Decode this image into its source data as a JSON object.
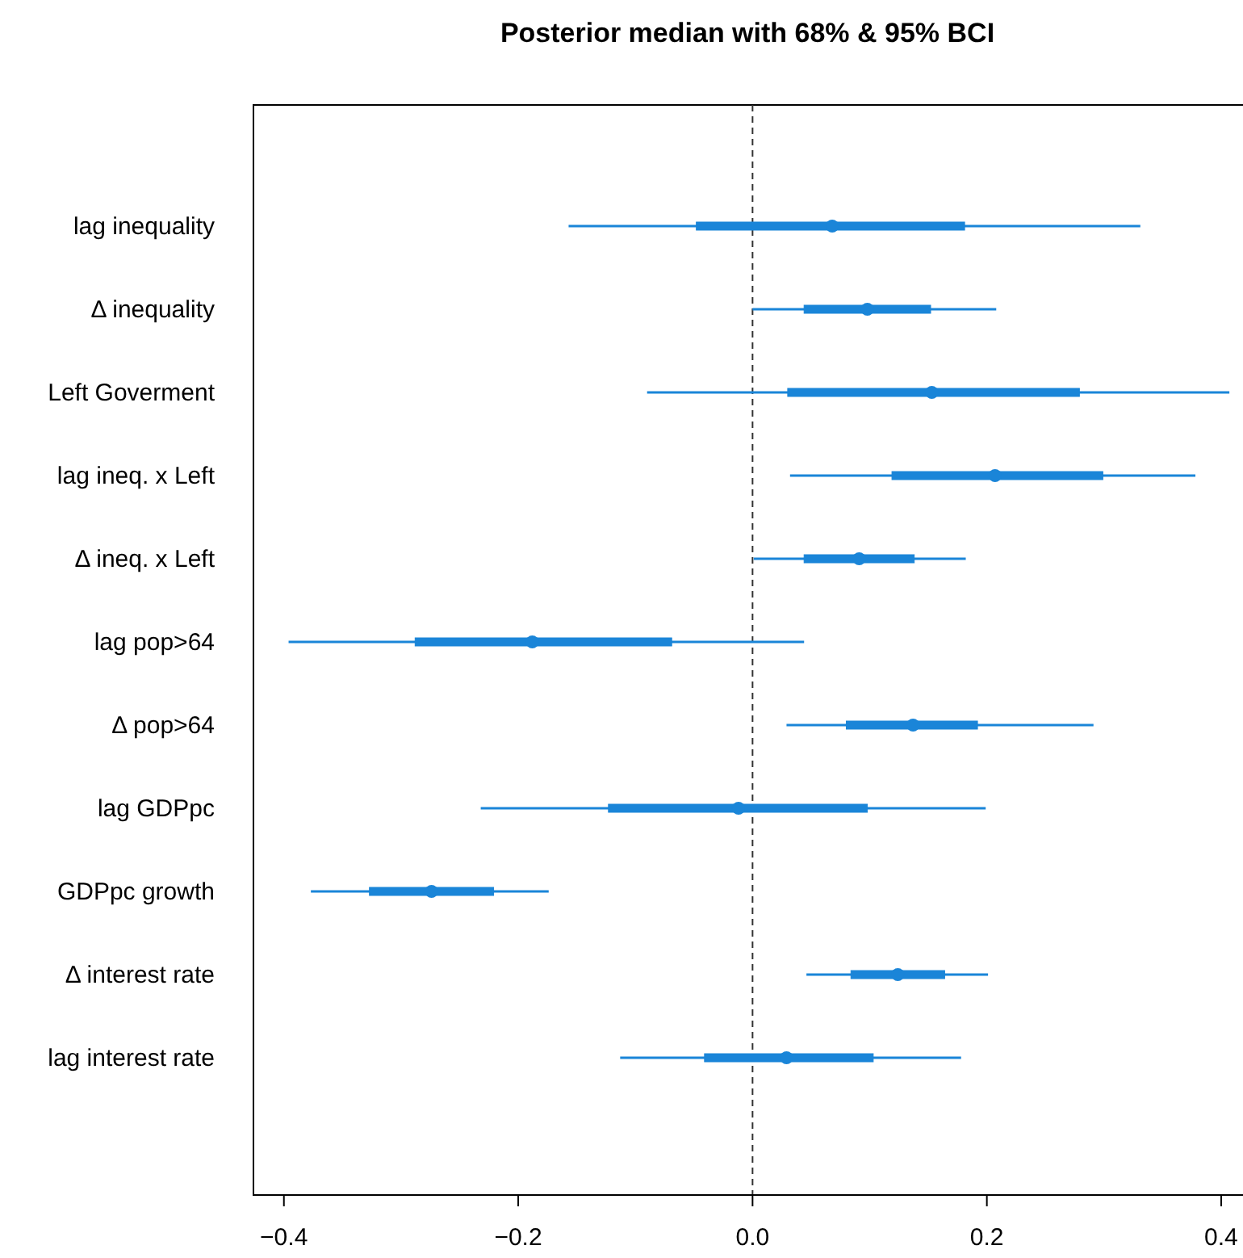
{
  "chart_data": {
    "type": "box",
    "orientation": "horizontal",
    "title": "Posterior median with 68% & 95% BCI",
    "categories": [
      "lag inequality",
      "Δ inequality",
      "Left Goverment",
      "lag ineq. x Left",
      "Δ ineq. x Left",
      "lag pop>64",
      "Δ pop>64",
      "lag GDPpc",
      "GDPpc growth",
      "Δ interest rate",
      "lag interest rate"
    ],
    "color": "#1a85d8",
    "boxes": [
      {
        "low": -0.157,
        "q1": -0.048,
        "median": 0.068,
        "q3": 0.181,
        "high": 0.331
      },
      {
        "low": 0.0,
        "q1": 0.044,
        "median": 0.098,
        "q3": 0.152,
        "high": 0.208
      },
      {
        "low": -0.09,
        "q1": 0.03,
        "median": 0.153,
        "q3": 0.279,
        "high": 0.407
      },
      {
        "low": 0.032,
        "q1": 0.119,
        "median": 0.207,
        "q3": 0.299,
        "high": 0.378
      },
      {
        "low": 0.001,
        "q1": 0.044,
        "median": 0.091,
        "q3": 0.138,
        "high": 0.182
      },
      {
        "low": -0.396,
        "q1": -0.288,
        "median": -0.188,
        "q3": -0.069,
        "high": 0.044
      },
      {
        "low": 0.029,
        "q1": 0.08,
        "median": 0.137,
        "q3": 0.192,
        "high": 0.291
      },
      {
        "low": -0.232,
        "q1": -0.123,
        "median": -0.012,
        "q3": 0.098,
        "high": 0.199
      },
      {
        "low": -0.377,
        "q1": -0.327,
        "median": -0.274,
        "q3": -0.221,
        "high": -0.174
      },
      {
        "low": 0.046,
        "q1": 0.084,
        "median": 0.124,
        "q3": 0.164,
        "high": 0.201
      },
      {
        "low": -0.113,
        "q1": -0.041,
        "median": 0.029,
        "q3": 0.103,
        "high": 0.178
      }
    ],
    "xlim": [
      -0.426,
      0.42
    ],
    "xticks": [
      {
        "value": -0.4,
        "label": "−0.4"
      },
      {
        "value": -0.2,
        "label": "−0.2"
      },
      {
        "value": 0,
        "label": "0.0"
      },
      {
        "value": 0.2,
        "label": "0.2"
      },
      {
        "value": 0.4,
        "label": "0.4"
      }
    ],
    "ref_lines": [
      {
        "axis": "x",
        "value": 0,
        "line_style": "dashed",
        "color": "#333333"
      }
    ],
    "marker": "circle"
  }
}
